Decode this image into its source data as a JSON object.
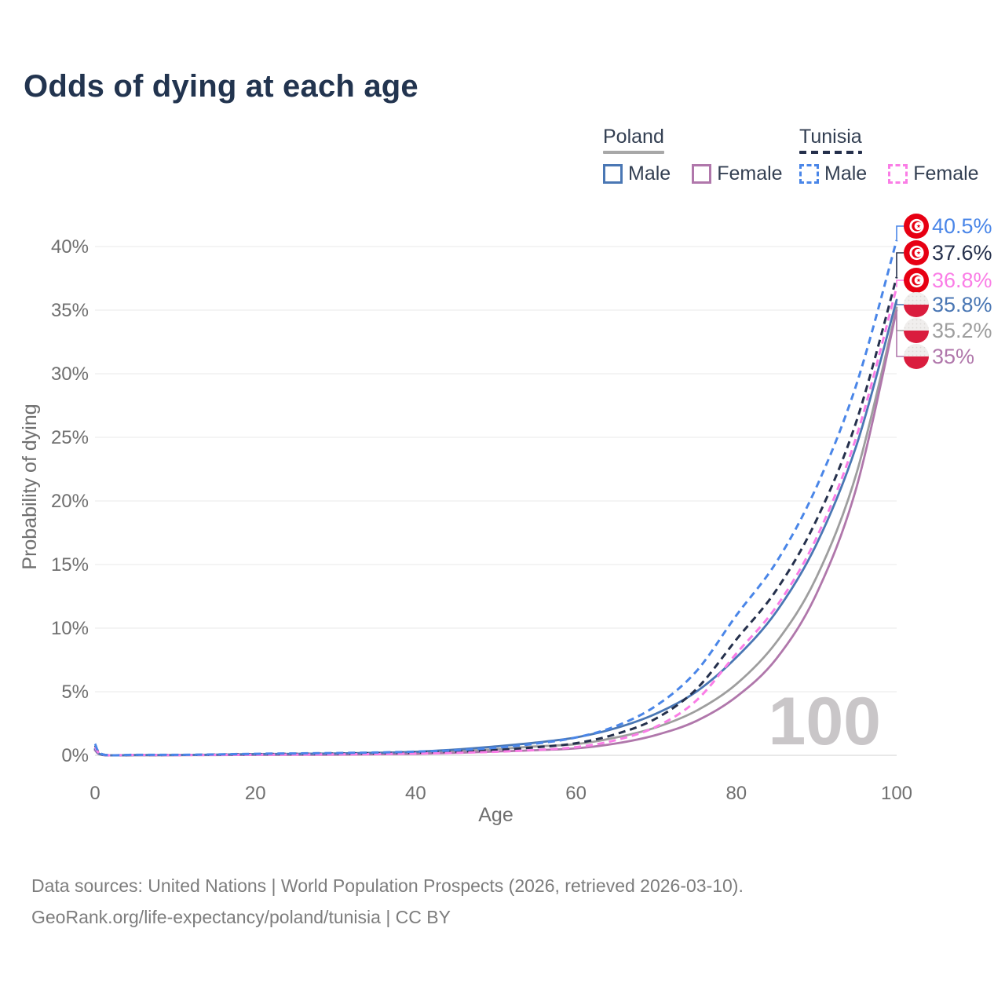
{
  "header": {
    "title": "Odds of dying at each age"
  },
  "legend": {
    "groups": [
      {
        "country": "Poland",
        "line_style": "solid",
        "underline_color": "#a8a8a8",
        "items": [
          {
            "label": "Male",
            "color": "#4a77b4",
            "style": "solid"
          },
          {
            "label": "Female",
            "color": "#b077ab",
            "style": "solid"
          }
        ]
      },
      {
        "country": "Tunisia",
        "line_style": "dashed",
        "underline_color": "#25304c",
        "items": [
          {
            "label": "Male",
            "color": "#4a86e8",
            "style": "dashed"
          },
          {
            "label": "Female",
            "color": "#fa7de6",
            "style": "dashed"
          }
        ]
      }
    ]
  },
  "chart_data": {
    "type": "line",
    "title": "Odds of dying at each age",
    "xlabel": "Age",
    "ylabel": "Probability of dying",
    "xlim": [
      0,
      100
    ],
    "ylim_pct": [
      0,
      42
    ],
    "grid": true,
    "x_ticks": [
      0,
      20,
      40,
      60,
      80,
      100
    ],
    "y_grid_pct": [
      0,
      5,
      10,
      15,
      20,
      25,
      30,
      35,
      40
    ],
    "y_tick_labels": [
      "0%",
      "5%",
      "10%",
      "15%",
      "20%",
      "25%",
      "30%",
      "35%",
      "40%"
    ],
    "watermark": "100",
    "ages": [
      0,
      1,
      5,
      10,
      15,
      20,
      25,
      30,
      35,
      40,
      45,
      50,
      55,
      60,
      65,
      70,
      75,
      80,
      85,
      90,
      95,
      100
    ],
    "series": [
      {
        "name": "Tunisia Male",
        "country": "Tunisia",
        "sex": "Male",
        "style": "dashed",
        "color": "#4a86e8",
        "label_color": "#4a86e8",
        "end_label": "40.5%",
        "values_pct": [
          0.9,
          0.07,
          0.04,
          0.04,
          0.07,
          0.12,
          0.15,
          0.18,
          0.22,
          0.29,
          0.4,
          0.6,
          0.92,
          1.4,
          2.3,
          3.9,
          6.6,
          11.0,
          15.2,
          21.1,
          29.2,
          40.5
        ]
      },
      {
        "name": "Tunisia Both sexes",
        "country": "Tunisia",
        "sex": "Both sexes",
        "style": "dashed",
        "color": "#25304c",
        "label_color": "#25304c",
        "end_label": "37.6%",
        "values_pct": [
          0.78,
          0.06,
          0.03,
          0.03,
          0.05,
          0.09,
          0.11,
          0.13,
          0.16,
          0.21,
          0.29,
          0.42,
          0.63,
          0.95,
          1.67,
          2.9,
          5.2,
          9.1,
          13.0,
          18.5,
          26.3,
          37.6
        ]
      },
      {
        "name": "Tunisia Female",
        "country": "Tunisia",
        "sex": "Female",
        "style": "dashed",
        "color": "#fa7de6",
        "label_color": "#fa7de6",
        "end_label": "36.8%",
        "values_pct": [
          0.65,
          0.05,
          0.03,
          0.02,
          0.03,
          0.05,
          0.06,
          0.08,
          0.1,
          0.14,
          0.19,
          0.28,
          0.42,
          0.64,
          1.2,
          2.25,
          4.3,
          8.0,
          11.7,
          17.1,
          25.1,
          36.8
        ]
      },
      {
        "name": "Poland Male",
        "country": "Poland",
        "sex": "Male",
        "style": "solid",
        "color": "#4a77b4",
        "label_color": "#4a77b4",
        "end_label": "35.8%",
        "values_pct": [
          0.5,
          0.03,
          0.02,
          0.02,
          0.05,
          0.1,
          0.12,
          0.15,
          0.2,
          0.28,
          0.45,
          0.7,
          1.0,
          1.4,
          2.14,
          3.28,
          5.0,
          7.7,
          11.3,
          16.6,
          24.4,
          35.8
        ]
      },
      {
        "name": "Poland Both sexes",
        "country": "Poland",
        "sex": "Both sexes",
        "style": "solid",
        "color": "#9e9e9e",
        "label_color": "#9e9e9e",
        "end_label": "35.2%",
        "values_pct": [
          0.45,
          0.03,
          0.02,
          0.02,
          0.04,
          0.07,
          0.08,
          0.1,
          0.14,
          0.2,
          0.31,
          0.48,
          0.7,
          0.88,
          1.4,
          2.2,
          3.5,
          5.6,
          8.9,
          14.0,
          22.2,
          35.2
        ]
      },
      {
        "name": "Poland Female",
        "country": "Poland",
        "sex": "Female",
        "style": "solid",
        "color": "#b077ab",
        "label_color": "#b077ab",
        "end_label": "35%",
        "values_pct": [
          0.4,
          0.02,
          0.01,
          0.01,
          0.02,
          0.03,
          0.04,
          0.05,
          0.08,
          0.12,
          0.19,
          0.3,
          0.4,
          0.55,
          0.93,
          1.6,
          2.7,
          4.6,
          7.6,
          12.7,
          21.1,
          35.0
        ]
      }
    ],
    "flag_colors": {
      "tunisia_red": "#e70013",
      "poland_red": "#da1d3e",
      "poland_white": "#f0eeed"
    },
    "axis_colors": {
      "grid": "#ededed",
      "baseline": "#d9d9d9",
      "tick_text": "#6f6f6f",
      "watermark": "#c9c6c8"
    }
  },
  "footer": {
    "line1": "Data sources: United Nations | World Population Prospects (2026, retrieved 2026-03-10).",
    "line2": "GeoRank.org/life-expectancy/poland/tunisia | CC BY"
  }
}
